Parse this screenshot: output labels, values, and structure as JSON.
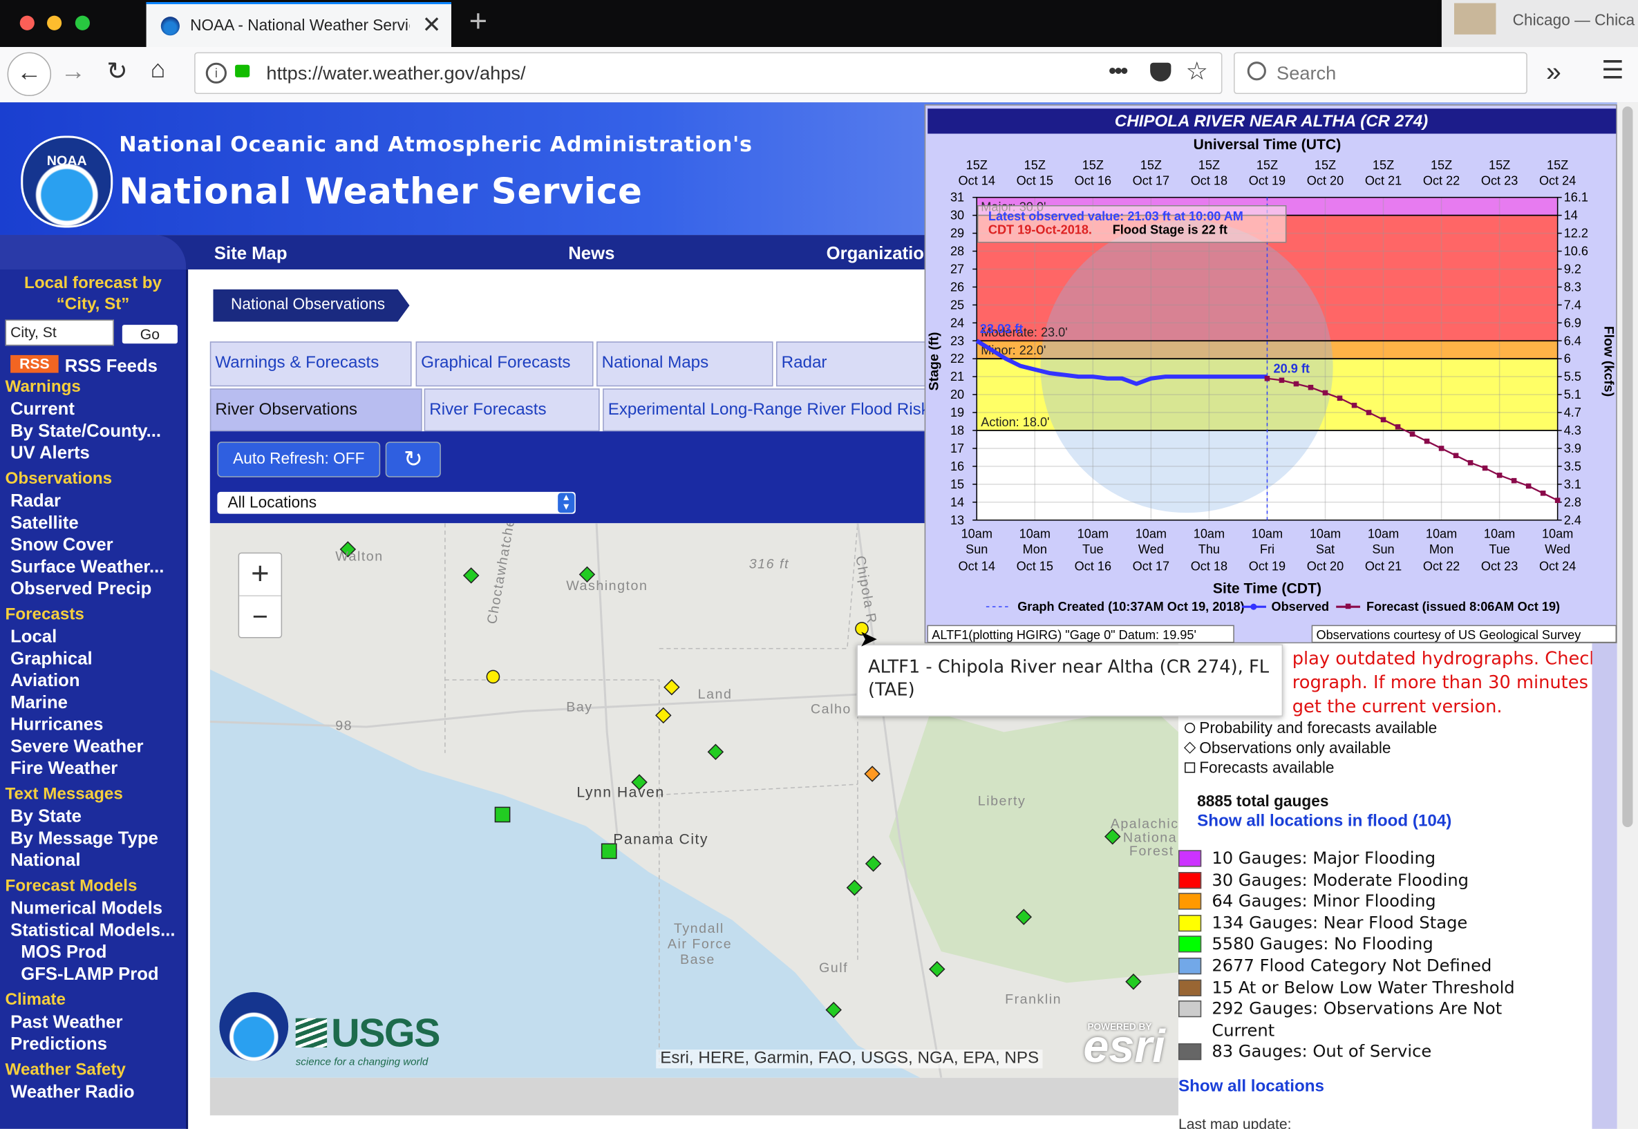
{
  "browser": {
    "tab_title": "NOAA - National Weather Servic",
    "url": "https://water.weather.gov/ahps/",
    "search_placeholder": "Search",
    "notification": "Chicago — Chica"
  },
  "header": {
    "logo": "NOAA",
    "agency": "National Oceanic and Atmospheric Administration's",
    "title": "National Weather Service",
    "nav": [
      "Site Map",
      "News",
      "Organizatio"
    ]
  },
  "sidebar": {
    "local_forecast": "Local forecast by “City, St”",
    "city_placeholder": "City, St",
    "go": "Go",
    "rss_badge": "RSS",
    "rss": "RSS Feeds",
    "sections": [
      {
        "heading": "Warnings",
        "links": [
          "Current",
          "By State/County...",
          "UV Alerts"
        ]
      },
      {
        "heading": "Observations",
        "links": [
          "Radar",
          "Satellite",
          "Snow Cover",
          "Surface Weather...",
          "Observed Precip"
        ]
      },
      {
        "heading": "Forecasts",
        "links": [
          "Local",
          "Graphical",
          "Aviation",
          "Marine",
          "Hurricanes",
          "Severe Weather",
          "Fire Weather"
        ]
      },
      {
        "heading": "Text Messages",
        "links": [
          "By State",
          "By Message Type",
          "National"
        ]
      },
      {
        "heading": "Forecast Models",
        "links": [
          "Numerical Models",
          "Statistical Models...",
          {
            "text": "MOS Prod",
            "indent": true
          },
          {
            "text": "GFS-LAMP Prod",
            "indent": true
          }
        ]
      },
      {
        "heading": "Climate",
        "links": [
          "Past Weather",
          "Predictions"
        ]
      },
      {
        "heading": "Weather Safety",
        "links": [
          "Weather Radio"
        ]
      }
    ]
  },
  "main": {
    "section_tab": "National Observations",
    "tabs_row1": [
      "Warnings & Forecasts",
      "Graphical Forecasts",
      "National Maps",
      "Radar"
    ],
    "tabs_row2": [
      "River Observations",
      "River Forecasts",
      "Experimental Long-Range River Flood Risk"
    ],
    "auto_refresh": "Auto Refresh: OFF",
    "location_select": "All Locations"
  },
  "map": {
    "labels": [
      "Walton",
      "Washington",
      "Bay",
      "Calho",
      "Lynn Haven",
      "Panama City",
      "Tyndall",
      "Air Force",
      "Base",
      "Gulf",
      "Franklin",
      "Liberty",
      "Apalachic",
      "Nationa",
      "Forest",
      "Land",
      "316 ft",
      "98",
      "Choctawhatchee",
      "Chipola R"
    ],
    "zoom_in": "+",
    "zoom_out": "−",
    "usgs": "USGS",
    "usgs_tagline": "science for a changing world",
    "esri_powered": "POWERED BY",
    "esri": "esri",
    "attribution": "Esri, HERE, Garmin, FAO, USGS, NGA, EPA, NPS"
  },
  "tooltip": "ALTF1 - Chipola River near Altha (CR 274), FL (TAE)",
  "notice": [
    "play outdated hydrographs. Check",
    "rograph. If more than 30 minutes",
    "get the current version."
  ],
  "legend": {
    "shapes": [
      "Probability and forecasts available",
      "Observations only available",
      "Forecasts available"
    ],
    "total": "8885 total gauges",
    "show_flood": "Show all locations in flood (104)",
    "items": [
      {
        "color": "#cc33ff",
        "label": "10 Gauges: Major Flooding"
      },
      {
        "color": "#ff0000",
        "label": "30 Gauges: Moderate Flooding"
      },
      {
        "color": "#ff9900",
        "label": "64 Gauges: Minor Flooding"
      },
      {
        "color": "#ffff00",
        "label": "134 Gauges: Near Flood Stage"
      },
      {
        "color": "#00ff00",
        "label": "5580 Gauges: No Flooding"
      },
      {
        "color": "#72a8e8",
        "label": "2677 Flood Category Not Defined"
      },
      {
        "color": "#996633",
        "label": "15 At or Below Low Water Threshold"
      },
      {
        "color": "#cccccc",
        "label": "292 Gauges: Observations Are Not Current"
      },
      {
        "color": "#666666",
        "label": "83 Gauges: Out of Service"
      }
    ],
    "show_all": "Show all locations",
    "last_update": "Last map update:"
  },
  "hydrograph": {
    "title": "CHIPOLA RIVER NEAR ALTHA (CR 274)",
    "top_axis_title": "Universal Time (UTC)",
    "top_ticks": [
      {
        "time": "15Z",
        "date": "Oct 14"
      },
      {
        "time": "15Z",
        "date": "Oct 15"
      },
      {
        "time": "15Z",
        "date": "Oct 16"
      },
      {
        "time": "15Z",
        "date": "Oct 17"
      },
      {
        "time": "15Z",
        "date": "Oct 18"
      },
      {
        "time": "15Z",
        "date": "Oct 19"
      },
      {
        "time": "15Z",
        "date": "Oct 20"
      },
      {
        "time": "15Z",
        "date": "Oct 21"
      },
      {
        "time": "15Z",
        "date": "Oct 22"
      },
      {
        "time": "15Z",
        "date": "Oct 23"
      },
      {
        "time": "15Z",
        "date": "Oct 24"
      }
    ],
    "bottom_ticks": [
      {
        "time": "10am",
        "day": "Sun",
        "date": "Oct 14"
      },
      {
        "time": "10am",
        "day": "Mon",
        "date": "Oct 15"
      },
      {
        "time": "10am",
        "day": "Tue",
        "date": "Oct 16"
      },
      {
        "time": "10am",
        "day": "Wed",
        "date": "Oct 17"
      },
      {
        "time": "10am",
        "day": "Thu",
        "date": "Oct 18"
      },
      {
        "time": "10am",
        "day": "Fri",
        "date": "Oct 19"
      },
      {
        "time": "10am",
        "day": "Sat",
        "date": "Oct 20"
      },
      {
        "time": "10am",
        "day": "Sun",
        "date": "Oct 21"
      },
      {
        "time": "10am",
        "day": "Mon",
        "date": "Oct 22"
      },
      {
        "time": "10am",
        "day": "Tue",
        "date": "Oct 23"
      },
      {
        "time": "10am",
        "day": "Wed",
        "date": "Oct 24"
      }
    ],
    "bottom_axis_title": "Site Time (CDT)",
    "y_label": "Stage (ft)",
    "y2_label": "Flow (kcfs)",
    "ylim": [
      13,
      31
    ],
    "yticks": [
      13,
      14,
      15,
      16,
      17,
      18,
      19,
      20,
      21,
      22,
      23,
      24,
      25,
      26,
      27,
      28,
      29,
      30,
      31
    ],
    "y2ticks": [
      2.4,
      2.8,
      3.1,
      3.5,
      3.9,
      4.3,
      4.7,
      5.1,
      5.5,
      6.0,
      6.4,
      6.9,
      7.4,
      8.3,
      9.2,
      10.6,
      12.2,
      14.0,
      16.1
    ],
    "flood_stages": [
      {
        "label": "Action: 18.0'",
        "value": 18,
        "color": "#ffff66"
      },
      {
        "label": "Minor: 22.0'",
        "value": 22,
        "color": "#ffb347"
      },
      {
        "label": "Moderate: 23.0'",
        "value": 23,
        "color": "#ff6666"
      },
      {
        "label": "Major: 30.0'",
        "value": 30,
        "color": "#e77bf0"
      }
    ],
    "observed": {
      "name": "Observed",
      "color": "#3333ff",
      "values": [
        23.0,
        22.5,
        22.0,
        21.6,
        21.4,
        21.2,
        21.1,
        21.0,
        21.0,
        20.9,
        20.9,
        20.6,
        20.9,
        21.0,
        21.0,
        21.0,
        21.0,
        21.0,
        21.0,
        21.0,
        21.0
      ]
    },
    "forecast": {
      "name": "Forecast (issued 8:06AM Oct 19)",
      "color": "#8a0a4a",
      "values": [
        20.9,
        20.8,
        20.6,
        20.4,
        20.1,
        19.8,
        19.4,
        19.0,
        18.6,
        18.2,
        17.8,
        17.4,
        17.0,
        16.6,
        16.2,
        15.9,
        15.5,
        15.2,
        14.9,
        14.5,
        14.1
      ]
    },
    "graph_created": "Graph Created (10:37AM Oct 19, 2018)",
    "annotations": {
      "latest": [
        "Latest observed value: 21.03 ft at 10:00 AM",
        "CDT 19-Oct-2018."
      ],
      "flood_stage": "Flood Stage is 22 ft",
      "start_value": "23.03 ft",
      "forecast_start": "20.9 ft"
    },
    "datum": "ALTF1(plotting HGIRG) \"Gage 0\" Datum: 19.95'",
    "courtesy": "Observations courtesy of US Geological Survey"
  }
}
